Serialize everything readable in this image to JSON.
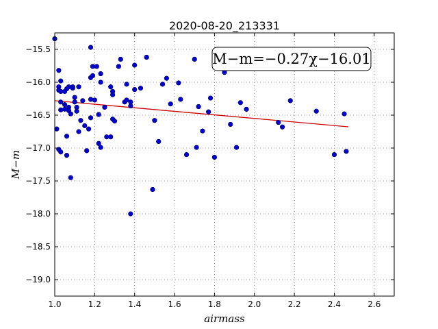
{
  "chart_data": {
    "type": "scatter",
    "title": "2020-08-20_213331",
    "xlabel": "airmass",
    "ylabel": "M−m",
    "xlim": [
      1.0,
      2.7
    ],
    "ylim": [
      -19.25,
      -15.25
    ],
    "y_inverted": true,
    "grid": true,
    "x_ticks": [
      1.0,
      1.2,
      1.4,
      1.6,
      1.8,
      2.0,
      2.2,
      2.4,
      2.6
    ],
    "x_tick_labels": [
      "1.0",
      "1.2",
      "1.4",
      "1.6",
      "1.8",
      "2.0",
      "2.2",
      "2.4",
      "2.6"
    ],
    "y_ticks": [
      -15.5,
      -16.0,
      -16.5,
      -17.0,
      -17.5,
      -18.0,
      -18.5,
      -19.0
    ],
    "y_tick_labels": [
      "−15.5",
      "−16.0",
      "−16.5",
      "−17.0",
      "−17.5",
      "−18.0",
      "−18.5",
      "−19.0"
    ],
    "annotation": "M−m=−0.27χ−16.01",
    "colors": {
      "points": "#0000cc",
      "fit": "#cc0000",
      "grid": "#7f7f7f"
    },
    "fit": {
      "slope": -0.27,
      "intercept": -16.01,
      "x_range": [
        1.0,
        2.47
      ]
    },
    "series": [
      {
        "points": [
          [
            1.0,
            -15.34
          ],
          [
            1.01,
            -16.71
          ],
          [
            1.02,
            -17.02
          ],
          [
            1.03,
            -17.06
          ],
          [
            1.02,
            -16.07
          ],
          [
            1.02,
            -16.12
          ],
          [
            1.03,
            -16.14
          ],
          [
            1.02,
            -15.82
          ],
          [
            1.03,
            -15.98
          ],
          [
            1.03,
            -16.3
          ],
          [
            1.03,
            -16.42
          ],
          [
            1.05,
            -16.41
          ],
          [
            1.05,
            -16.14
          ],
          [
            1.05,
            -16.34
          ],
          [
            1.06,
            -16.1
          ],
          [
            1.06,
            -16.82
          ],
          [
            1.06,
            -17.11
          ],
          [
            1.07,
            -16.07
          ],
          [
            1.07,
            -16.38
          ],
          [
            1.07,
            -16.43
          ],
          [
            1.08,
            -16.48
          ],
          [
            1.08,
            -17.45
          ],
          [
            1.09,
            -16.07
          ],
          [
            1.09,
            -16.09
          ],
          [
            1.1,
            -16.23
          ],
          [
            1.1,
            -16.3
          ],
          [
            1.11,
            -16.44
          ],
          [
            1.11,
            -16.38
          ],
          [
            1.12,
            -16.75
          ],
          [
            1.12,
            -16.07
          ],
          [
            1.13,
            -16.58
          ],
          [
            1.14,
            -16.28
          ],
          [
            1.15,
            -16.66
          ],
          [
            1.16,
            -17.04
          ],
          [
            1.17,
            -16.71
          ],
          [
            1.18,
            -16.54
          ],
          [
            1.18,
            -16.26
          ],
          [
            1.18,
            -15.93
          ],
          [
            1.18,
            -15.47
          ],
          [
            1.19,
            -15.9
          ],
          [
            1.19,
            -15.76
          ],
          [
            1.2,
            -16.27
          ],
          [
            1.21,
            -15.76
          ],
          [
            1.22,
            -16.93
          ],
          [
            1.22,
            -16.49
          ],
          [
            1.23,
            -16.0
          ],
          [
            1.23,
            -15.87
          ],
          [
            1.23,
            -16.99
          ],
          [
            1.25,
            -16.38
          ],
          [
            1.26,
            -16.83
          ],
          [
            1.28,
            -16.07
          ],
          [
            1.28,
            -16.83
          ],
          [
            1.29,
            -16.14
          ],
          [
            1.29,
            -16.19
          ],
          [
            1.29,
            -16.56
          ],
          [
            1.3,
            -16.59
          ],
          [
            1.32,
            -15.76
          ],
          [
            1.33,
            -15.65
          ],
          [
            1.35,
            -16.3
          ],
          [
            1.36,
            -16.27
          ],
          [
            1.36,
            -16.03
          ],
          [
            1.38,
            -16.36
          ],
          [
            1.38,
            -16.3
          ],
          [
            1.38,
            -18.0
          ],
          [
            1.4,
            -15.74
          ],
          [
            1.4,
            -16.11
          ],
          [
            1.43,
            -16.09
          ],
          [
            1.46,
            -15.62
          ],
          [
            1.49,
            -17.63
          ],
          [
            1.5,
            -16.58
          ],
          [
            1.52,
            -16.9
          ],
          [
            1.54,
            -16.03
          ],
          [
            1.56,
            -15.94
          ],
          [
            1.58,
            -16.33
          ],
          [
            1.62,
            -16.01
          ],
          [
            1.63,
            -16.26
          ],
          [
            1.66,
            -17.1
          ],
          [
            1.7,
            -15.65
          ],
          [
            1.71,
            -16.99
          ],
          [
            1.72,
            -16.37
          ],
          [
            1.74,
            -16.74
          ],
          [
            1.77,
            -16.45
          ],
          [
            1.78,
            -16.24
          ],
          [
            1.8,
            -17.14
          ],
          [
            1.85,
            -15.85
          ],
          [
            1.88,
            -16.64
          ],
          [
            1.91,
            -16.99
          ],
          [
            1.93,
            -16.31
          ],
          [
            1.96,
            -16.41
          ],
          [
            2.12,
            -16.61
          ],
          [
            2.14,
            -16.68
          ],
          [
            2.18,
            -16.28
          ],
          [
            2.31,
            -16.44
          ],
          [
            2.4,
            -17.1
          ],
          [
            2.45,
            -16.48
          ],
          [
            2.46,
            -17.05
          ]
        ]
      }
    ]
  }
}
